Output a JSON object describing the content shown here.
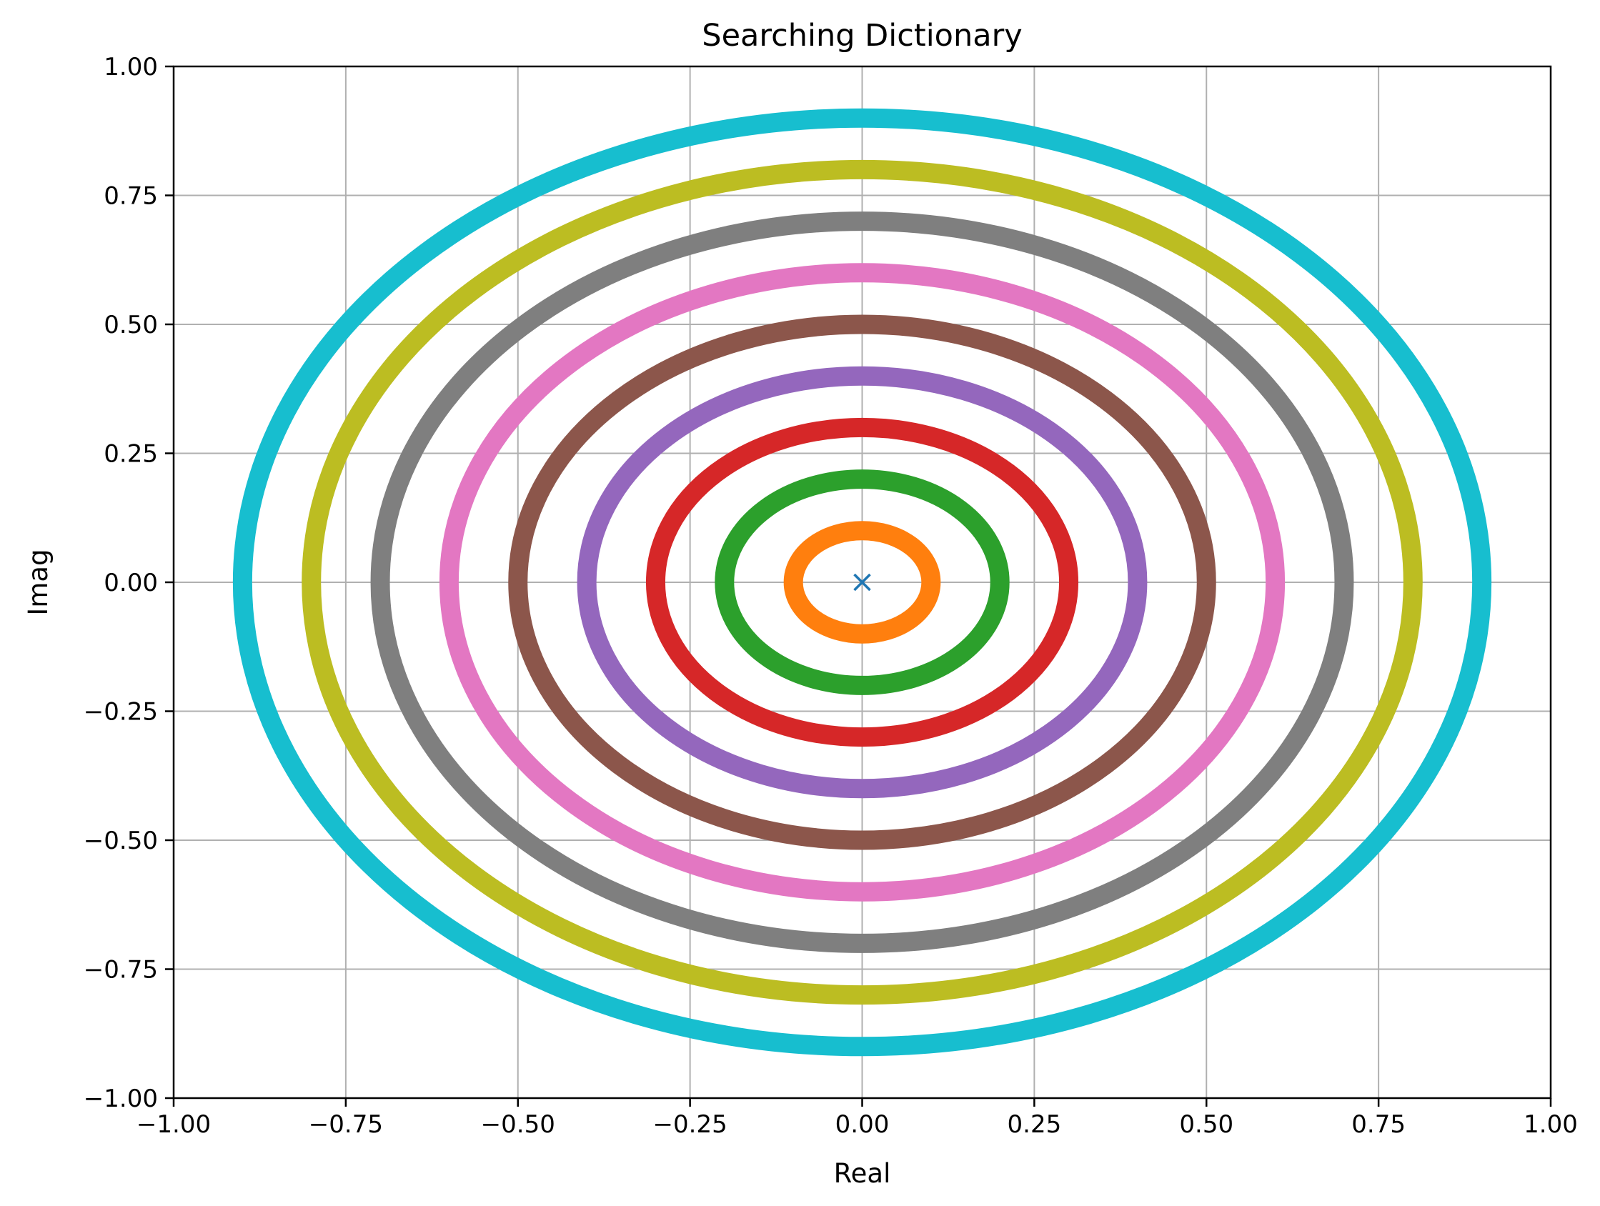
{
  "chart_data": {
    "type": "scatter",
    "title": "Searching Dictionary",
    "xlabel": "Real",
    "ylabel": "Imag",
    "xlim": [
      -1.0,
      1.0
    ],
    "ylim": [
      -1.0,
      1.0
    ],
    "grid": true,
    "xticks": [
      "−1.00",
      "−0.75",
      "−0.50",
      "−0.25",
      "0.00",
      "0.25",
      "0.50",
      "0.75",
      "1.00"
    ],
    "yticks": [
      "1.00",
      "0.75",
      "0.50",
      "0.25",
      "0.00",
      "−0.25",
      "−0.50",
      "−0.75",
      "−1.00"
    ],
    "xtick_values": [
      -1.0,
      -0.75,
      -0.5,
      -0.25,
      0.0,
      0.25,
      0.5,
      0.75,
      1.0
    ],
    "ytick_values": [
      1.0,
      0.75,
      0.5,
      0.25,
      0.0,
      -0.25,
      -0.5,
      -0.75,
      -1.0
    ],
    "rings": [
      {
        "radius": 0.1,
        "color": "#ff7f0e"
      },
      {
        "radius": 0.2,
        "color": "#2ca02c"
      },
      {
        "radius": 0.3,
        "color": "#d62728"
      },
      {
        "radius": 0.4,
        "color": "#9467bd"
      },
      {
        "radius": 0.5,
        "color": "#8c564b"
      },
      {
        "radius": 0.6,
        "color": "#e377c2"
      },
      {
        "radius": 0.7,
        "color": "#7f7f7f"
      },
      {
        "radius": 0.8,
        "color": "#bcbd22"
      },
      {
        "radius": 0.9,
        "color": "#17becf"
      }
    ],
    "center_marker": {
      "x": 0.0,
      "y": 0.0,
      "marker": "x",
      "color": "#1f77b4"
    }
  }
}
